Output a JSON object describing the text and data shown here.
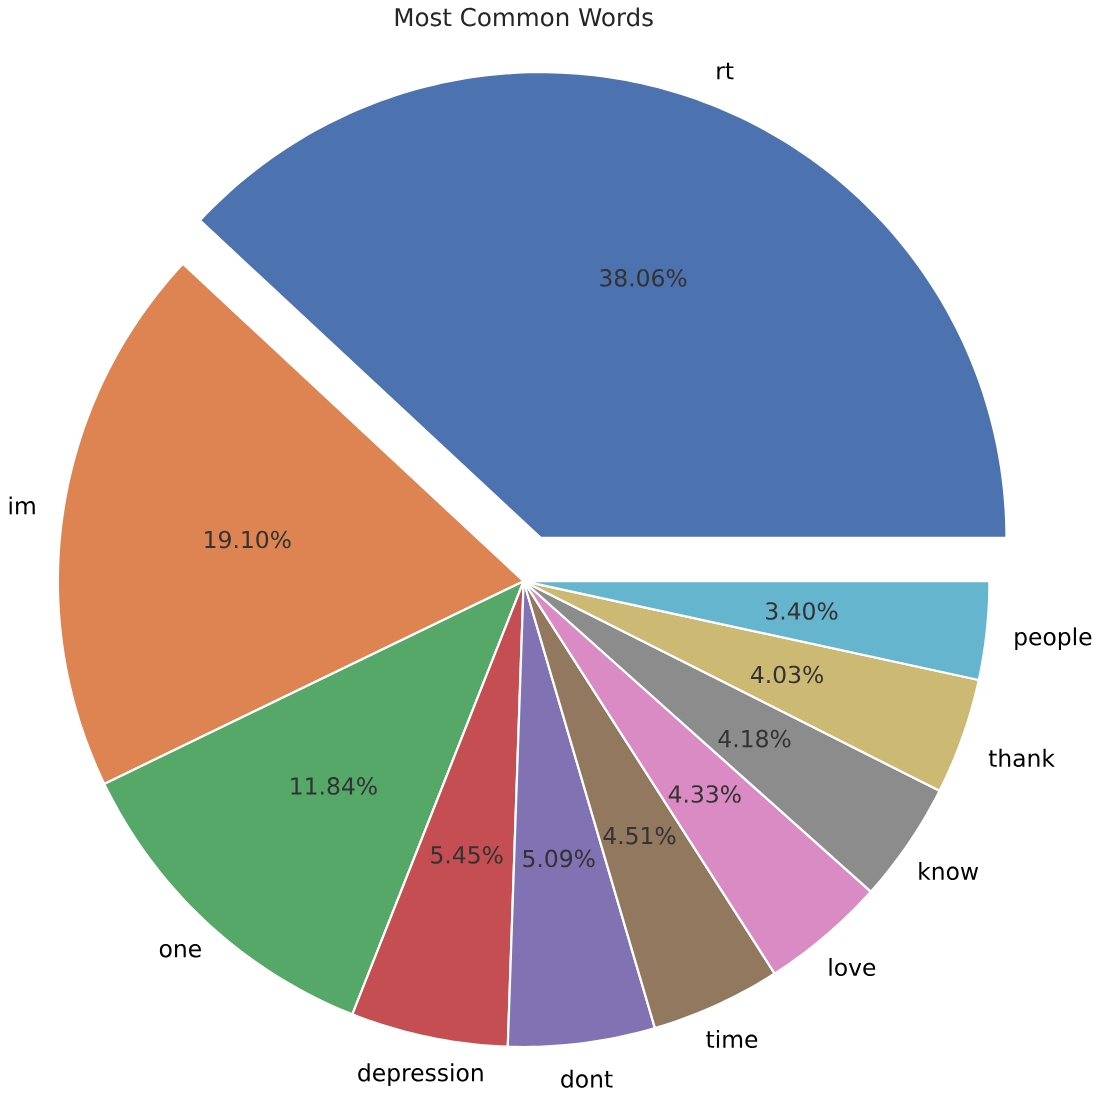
{
  "chart_data": {
    "type": "pie",
    "title": "Most Common Words",
    "categories": [
      "rt",
      "im",
      "one",
      "depression",
      "dont",
      "time",
      "love",
      "know",
      "thank",
      "people"
    ],
    "values": [
      38.06,
      19.1,
      11.84,
      5.45,
      5.09,
      4.51,
      4.33,
      4.18,
      4.03,
      3.4
    ],
    "value_labels": [
      "38.06%",
      "19.10%",
      "11.84%",
      "5.45%",
      "5.09%",
      "4.51%",
      "4.33%",
      "4.18%",
      "4.03%",
      "3.40%"
    ],
    "colors": [
      "#4c72b0",
      "#dd8452",
      "#55a868",
      "#c44e52",
      "#8172b3",
      "#937860",
      "#da8bc3",
      "#8c8c8c",
      "#ccb974",
      "#64b5cd"
    ]
  }
}
